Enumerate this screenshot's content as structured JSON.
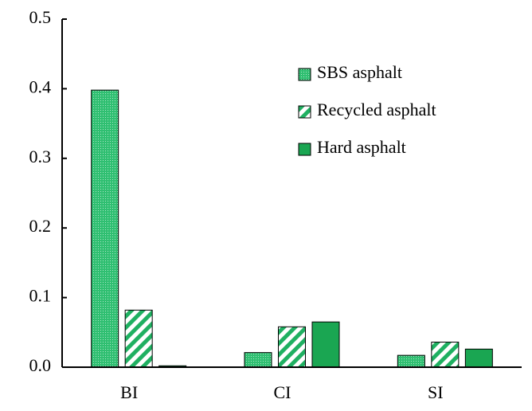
{
  "chart_data": {
    "type": "bar",
    "categories": [
      "BI",
      "CI",
      "SI"
    ],
    "series": [
      {
        "name": "SBS asphalt",
        "color": "#2fbf71",
        "pattern": "dots",
        "values": [
          0.398,
          0.021,
          0.017
        ]
      },
      {
        "name": "Recycled asphalt",
        "color": "#1fb061",
        "pattern": "stripes",
        "values": [
          0.082,
          0.058,
          0.036
        ]
      },
      {
        "name": "Hard asphalt",
        "color": "#1aa652",
        "pattern": "solid",
        "values": [
          0.002,
          0.065,
          0.026
        ]
      }
    ],
    "ylim": [
      0,
      0.5
    ],
    "yticks": [
      {
        "value": 0,
        "label": "0.0"
      },
      0.1,
      0.2,
      0.3,
      0.4,
      0.5
    ],
    "grid": false,
    "legend": "upper right"
  }
}
